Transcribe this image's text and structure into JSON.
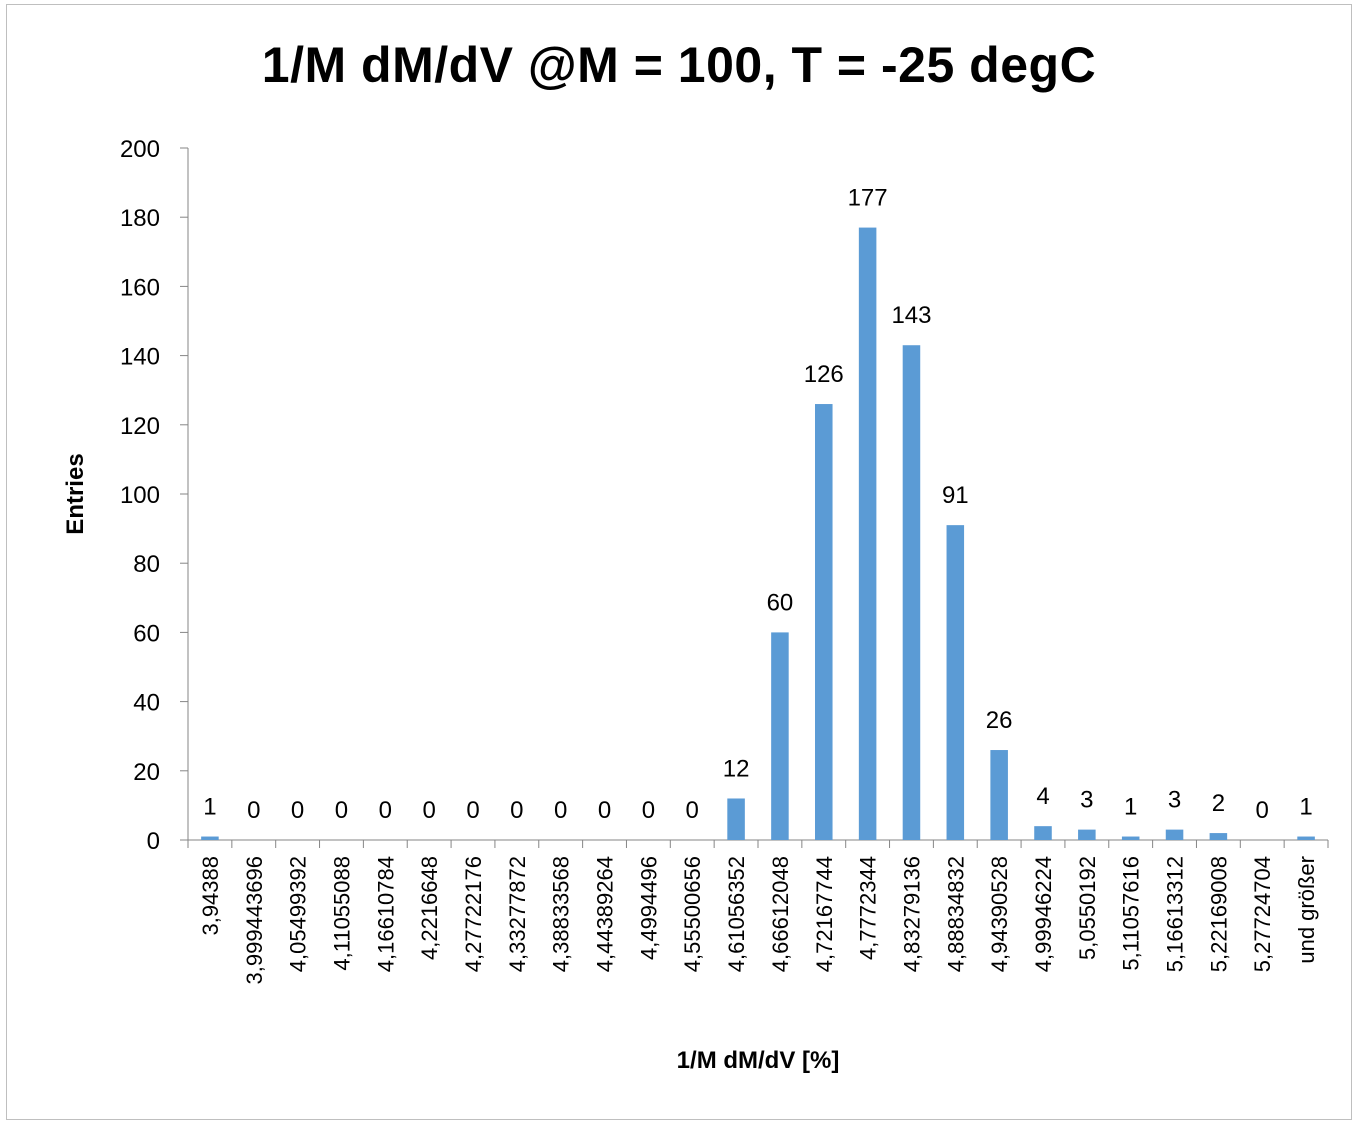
{
  "chart_data": {
    "type": "bar",
    "title": "1/M dM/dV @M = 100, T = -25 degC",
    "xlabel": "1/M dM/dV [%]",
    "ylabel": "Entries",
    "ylim": [
      0,
      200
    ],
    "yticks": [
      0,
      20,
      40,
      60,
      80,
      100,
      120,
      140,
      160,
      180,
      200
    ],
    "bar_color": "#5b9bd5",
    "categories": [
      "3,94388",
      "3,999443696",
      "4,05499392",
      "4,11055088",
      "4,16610784",
      "4,2216648",
      "4,27722176",
      "4,33277872",
      "4,38833568",
      "4,44389264",
      "4,4994496",
      "4,55500656",
      "4,61056352",
      "4,66612048",
      "4,72167744",
      "4,7772344",
      "4,83279136",
      "4,88834832",
      "4,94390528",
      "4,99946224",
      "5,0550192",
      "5,11057616",
      "5,16613312",
      "5,22169008",
      "5,27724704",
      "und größer"
    ],
    "values": [
      1,
      0,
      0,
      0,
      0,
      0,
      0,
      0,
      0,
      0,
      0,
      0,
      12,
      60,
      126,
      177,
      143,
      91,
      26,
      4,
      3,
      1,
      3,
      2,
      0,
      1
    ]
  }
}
